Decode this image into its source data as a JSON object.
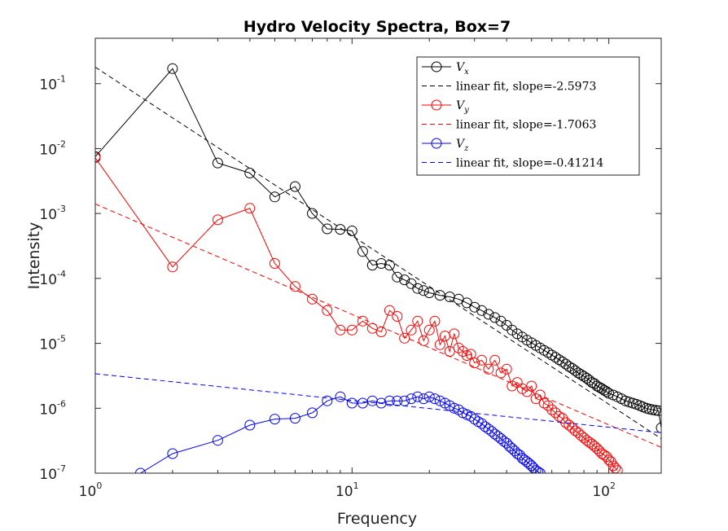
{
  "chart_data": {
    "type": "line",
    "title": "Hydro Velocity Spectra, Box=7",
    "xlabel": "Frequency",
    "ylabel": "Intensity",
    "xscale": "log",
    "yscale": "log",
    "xlim": [
      1,
      160
    ],
    "ylim": [
      1e-07,
      0.5
    ],
    "xticks": [
      {
        "value": 1,
        "base": "10",
        "exp": "0"
      },
      {
        "value": 10,
        "base": "10",
        "exp": "1"
      },
      {
        "value": 100,
        "base": "10",
        "exp": "2"
      }
    ],
    "yticks": [
      {
        "value": 1e-07,
        "base": "10",
        "exp": "-7"
      },
      {
        "value": 1e-06,
        "base": "10",
        "exp": "-6"
      },
      {
        "value": 1e-05,
        "base": "10",
        "exp": "-5"
      },
      {
        "value": 0.0001,
        "base": "10",
        "exp": "-4"
      },
      {
        "value": 0.001,
        "base": "10",
        "exp": "-3"
      },
      {
        "value": 0.01,
        "base": "10",
        "exp": "-2"
      },
      {
        "value": 0.1,
        "base": "10",
        "exp": "-1"
      }
    ],
    "grid": false,
    "legend_position": "top-right",
    "series": [
      {
        "name": "Vx",
        "label_main": "V",
        "label_sub": "x",
        "color": "#000000",
        "marker": "circle",
        "x": [
          1,
          2,
          3,
          4,
          5,
          6,
          7,
          8,
          9,
          10,
          11,
          12,
          13,
          14,
          15,
          16,
          17,
          18,
          19,
          20,
          22,
          24,
          26,
          28,
          30,
          32,
          34,
          36,
          38,
          40,
          42,
          44,
          46,
          48,
          50,
          52,
          54,
          56,
          58,
          60,
          62,
          64,
          66,
          68,
          70,
          72,
          74,
          76,
          78,
          80,
          82,
          84,
          86,
          88,
          90,
          92,
          94,
          96,
          98,
          100,
          104,
          108,
          112,
          116,
          120,
          124,
          128,
          132,
          136,
          140,
          144,
          148,
          152,
          156,
          160
        ],
        "y": [
          0.0075,
          0.17,
          0.006,
          0.0042,
          0.0018,
          0.0026,
          0.001,
          0.00058,
          0.00057,
          0.00054,
          0.00026,
          0.00016,
          0.00017,
          0.00016,
          0.000105,
          9.5e-05,
          8.3e-05,
          7e-05,
          6.5e-05,
          6e-05,
          5.5e-05,
          5.2e-05,
          4.8e-05,
          4.2e-05,
          3.6e-05,
          3.2e-05,
          2.8e-05,
          2.5e-05,
          2.2e-05,
          1.9e-05,
          1.6e-05,
          1.4e-05,
          1.25e-05,
          1.12e-05,
          1.02e-05,
          9.3e-06,
          8.5e-06,
          7.8e-06,
          7.2e-06,
          6.6e-06,
          6.1e-06,
          5.6e-06,
          5.2e-06,
          4.8e-06,
          4.4e-06,
          4.1e-06,
          3.8e-06,
          3.5e-06,
          3.3e-06,
          3.1e-06,
          2.9e-06,
          2.7e-06,
          2.5e-06,
          2.4e-06,
          2.2e-06,
          2.1e-06,
          2e-06,
          1.9e-06,
          1.8e-06,
          1.7e-06,
          1.6e-06,
          1.5e-06,
          1.4e-06,
          1.3e-06,
          1.25e-06,
          1.2e-06,
          1.15e-06,
          1.1e-06,
          1.05e-06,
          1e-06,
          9.7e-07,
          9.5e-07,
          9.3e-07,
          9.2e-07,
          5e-07
        ]
      },
      {
        "name": "linear fit, slope=-2.5973",
        "color": "#000000",
        "dashed": true,
        "x": [
          1,
          160
        ],
        "y": [
          0.18,
          3.4e-07
        ]
      },
      {
        "name": "Vy",
        "label_main": "V",
        "label_sub": "y",
        "color": "#ff0000",
        "marker": "circle",
        "x": [
          1,
          2,
          3,
          4,
          5,
          6,
          7,
          8,
          9,
          10,
          11,
          12,
          13,
          14,
          15,
          16,
          17,
          18,
          19,
          20,
          21,
          22,
          23,
          24,
          25,
          26,
          27,
          28,
          29,
          30,
          32,
          34,
          36,
          38,
          40,
          42,
          44,
          46,
          48,
          50,
          52,
          54,
          56,
          58,
          60,
          62,
          64,
          66,
          68,
          70,
          72,
          74,
          76,
          78,
          80,
          82,
          84,
          86,
          88,
          90,
          92,
          94,
          96,
          98,
          100,
          102,
          104,
          106,
          108
        ],
        "y": [
          0.0072,
          0.00015,
          0.0008,
          0.0012,
          0.00017,
          7.5e-05,
          4.8e-05,
          3.2e-05,
          1.6e-05,
          1.6e-05,
          2.2e-05,
          1.7e-05,
          1.5e-05,
          3.2e-05,
          2.6e-05,
          1.2e-05,
          1.6e-05,
          2.2e-05,
          1.1e-05,
          1.6e-05,
          2.2e-05,
          9.5e-06,
          1.3e-05,
          7.5e-06,
          1.4e-05,
          8.5e-06,
          7.5e-06,
          6.5e-06,
          6.8e-06,
          5e-06,
          5.5e-06,
          4e-06,
          5.5e-06,
          3.5e-06,
          4e-06,
          2.2e-06,
          2.5e-06,
          2e-06,
          1.8e-06,
          2.2e-06,
          1.4e-06,
          1.6e-06,
          1.2e-06,
          1.1e-06,
          9.5e-07,
          8.5e-07,
          7.5e-07,
          7e-07,
          6e-07,
          5.5e-07,
          5e-07,
          4.5e-07,
          4.2e-07,
          3.8e-07,
          3.5e-07,
          3.2e-07,
          3e-07,
          2.8e-07,
          2.6e-07,
          2.4e-07,
          2.2e-07,
          2e-07,
          1.9e-07,
          1.8e-07,
          1.6e-07,
          1.5e-07,
          1.3e-07,
          1.2e-07,
          1.1e-07
        ]
      },
      {
        "name": "linear fit, slope=-1.7063",
        "color": "#ff0000",
        "dashed": true,
        "x": [
          1,
          160
        ],
        "y": [
          0.0014,
          2.5e-07
        ]
      },
      {
        "name": "Vz",
        "label_main": "V",
        "label_sub": "z",
        "color": "#0000ff",
        "marker": "circle",
        "x": [
          1.5,
          2,
          3,
          4,
          5,
          6,
          7,
          8,
          9,
          10,
          11,
          12,
          13,
          14,
          15,
          16,
          17,
          18,
          19,
          20,
          21,
          22,
          23,
          24,
          25,
          26,
          27,
          28,
          29,
          30,
          31,
          32,
          33,
          34,
          35,
          36,
          37,
          38,
          39,
          40,
          41,
          42,
          43,
          44,
          45,
          46,
          47,
          48,
          49,
          50,
          51,
          52,
          53,
          54
        ],
        "y": [
          1e-07,
          2e-07,
          3.2e-07,
          5.5e-07,
          6.8e-07,
          7e-07,
          8.5e-07,
          1.3e-06,
          1.5e-06,
          1.2e-06,
          1.2e-06,
          1.3e-06,
          1.2e-06,
          1.3e-06,
          1.3e-06,
          1.3e-06,
          1.4e-06,
          1.5e-06,
          1.4e-06,
          1.5e-06,
          1.4e-06,
          1.3e-06,
          1.2e-06,
          1.1e-06,
          1e-06,
          9.5e-07,
          8.5e-07,
          8e-07,
          7.5e-07,
          6.8e-07,
          6.2e-07,
          5.8e-07,
          5.2e-07,
          4.8e-07,
          4.4e-07,
          4e-07,
          3.7e-07,
          3.4e-07,
          3.1e-07,
          2.9e-07,
          2.6e-07,
          2.4e-07,
          2.2e-07,
          2e-07,
          1.9e-07,
          1.7e-07,
          1.6e-07,
          1.5e-07,
          1.4e-07,
          1.3e-07,
          1.2e-07,
          1.1e-07,
          1.05e-07,
          1e-07
        ]
      },
      {
        "name": "linear fit, slope=-0.41214",
        "color": "#0000ff",
        "dashed": true,
        "x": [
          1,
          160
        ],
        "y": [
          3.4e-06,
          4.2e-07
        ]
      }
    ]
  }
}
